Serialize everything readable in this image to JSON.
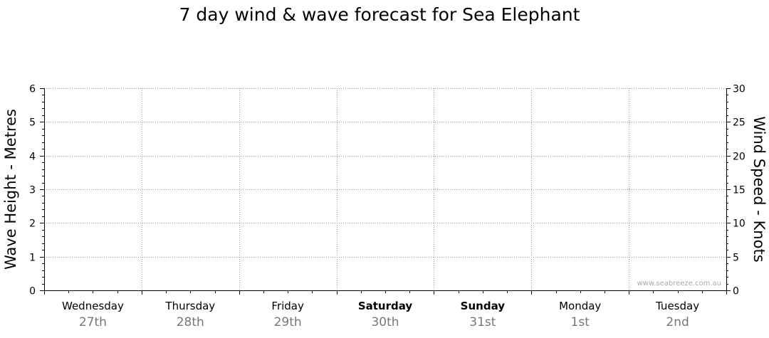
{
  "chart_data": {
    "type": "line",
    "title": "7 day wind & wave forecast for Sea Elephant",
    "left_axis": {
      "label": "Wave Height - Metres",
      "range": [
        0,
        6
      ],
      "ticks": [
        0,
        1,
        2,
        3,
        4,
        5,
        6
      ]
    },
    "right_axis": {
      "label": "Wind Speed - Knots",
      "range": [
        0,
        30
      ],
      "ticks": [
        0,
        5,
        10,
        15,
        20,
        25,
        30
      ]
    },
    "grid": true,
    "days": [
      {
        "name": "Wednesday",
        "date": "27th",
        "bold": false
      },
      {
        "name": "Thursday",
        "date": "28th",
        "bold": false
      },
      {
        "name": "Friday",
        "date": "29th",
        "bold": false
      },
      {
        "name": "Saturday",
        "date": "30th",
        "bold": true
      },
      {
        "name": "Sunday",
        "date": "31st",
        "bold": true
      },
      {
        "name": "Monday",
        "date": "1st",
        "bold": false
      },
      {
        "name": "Tuesday",
        "date": "2nd",
        "bold": false
      }
    ],
    "series": [],
    "watermark": "www.seabreeze.com.au"
  }
}
